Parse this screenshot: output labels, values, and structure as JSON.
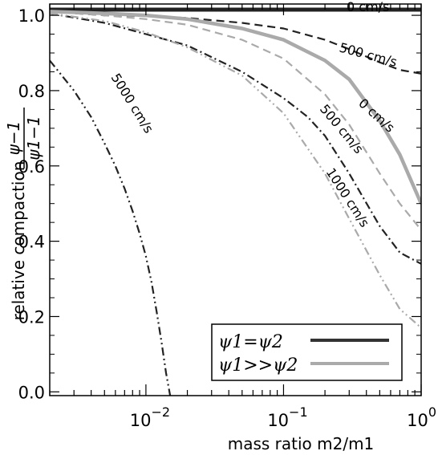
{
  "chart_data": {
    "type": "line",
    "xlabel": "mass ratio m2/m1",
    "ylabel": "relative compaction",
    "ylabel_formula": {
      "numerator": "ψ−1",
      "denominator": "ψ1−1"
    },
    "xscale": "log",
    "xlim": [
      0.002,
      1.0
    ],
    "ylim": [
      -0.01,
      1.03
    ],
    "xticks": [
      {
        "value": 0.01,
        "label": "10",
        "exp": "−2"
      },
      {
        "value": 0.1,
        "label": "10",
        "exp": "−1"
      },
      {
        "value": 1.0,
        "label": "10",
        "exp": "0"
      }
    ],
    "yticks": [
      {
        "value": 0.0,
        "label": "0.0"
      },
      {
        "value": 0.2,
        "label": "0.2"
      },
      {
        "value": 0.4,
        "label": "0.4"
      },
      {
        "value": 0.6,
        "label": "0.6"
      },
      {
        "value": 0.8,
        "label": "0.8"
      },
      {
        "value": 1.0,
        "label": "1.0"
      }
    ],
    "legend": {
      "placement": "bottom-right",
      "entries": [
        {
          "label": "ψ1=ψ2",
          "color": "#333333"
        },
        {
          "label": "ψ1>>ψ2",
          "color": "#aaaaaa"
        }
      ]
    },
    "series": [
      {
        "velocity": "0 cm/s",
        "group": "ψ1=ψ2",
        "color": "#222222",
        "dash": "solid",
        "x": [
          0.002,
          0.01,
          0.1,
          1.0
        ],
        "y": [
          1.015,
          1.015,
          1.015,
          1.015
        ]
      },
      {
        "velocity": "500 cm/s",
        "group": "ψ1=ψ2",
        "color": "#222222",
        "dash": "dash",
        "x": [
          0.002,
          0.005,
          0.01,
          0.02,
          0.05,
          0.1,
          0.2,
          0.3,
          0.5,
          0.7,
          1.0
        ],
        "y": [
          1.01,
          1.0,
          0.998,
          0.993,
          0.98,
          0.965,
          0.935,
          0.91,
          0.875,
          0.855,
          0.845
        ]
      },
      {
        "velocity": "1000 cm/s",
        "group": "ψ1=ψ2",
        "color": "#222222",
        "dash": "dashdot",
        "x": [
          0.002,
          0.005,
          0.01,
          0.02,
          0.05,
          0.1,
          0.15,
          0.2,
          0.3,
          0.5,
          0.7,
          1.0
        ],
        "y": [
          1.005,
          0.98,
          0.95,
          0.92,
          0.85,
          0.78,
          0.73,
          0.68,
          0.58,
          0.44,
          0.37,
          0.34
        ]
      },
      {
        "velocity": "5000 cm/s",
        "group": "ψ1=ψ2",
        "color": "#222222",
        "dash": "dashdotdot",
        "x": [
          0.002,
          0.003,
          0.004,
          0.005,
          0.006,
          0.007,
          0.008,
          0.009,
          0.01,
          0.011,
          0.012,
          0.013,
          0.014,
          0.015
        ],
        "y": [
          0.88,
          0.8,
          0.73,
          0.66,
          0.6,
          0.54,
          0.48,
          0.42,
          0.36,
          0.29,
          0.21,
          0.13,
          0.05,
          -0.01
        ]
      },
      {
        "velocity": "0 cm/s",
        "group": "ψ1>>ψ2",
        "color": "#aaaaaa",
        "dash": "solid",
        "x": [
          0.002,
          0.005,
          0.01,
          0.02,
          0.05,
          0.1,
          0.2,
          0.3,
          0.5,
          0.7,
          1.0
        ],
        "y": [
          1.01,
          1.005,
          1.0,
          0.99,
          0.965,
          0.935,
          0.88,
          0.83,
          0.72,
          0.63,
          0.5
        ]
      },
      {
        "velocity": "500 cm/s",
        "group": "ψ1>>ψ2",
        "color": "#aaaaaa",
        "dash": "dash",
        "x": [
          0.002,
          0.005,
          0.01,
          0.02,
          0.05,
          0.1,
          0.2,
          0.3,
          0.5,
          0.7,
          1.0
        ],
        "y": [
          1.01,
          1.0,
          0.99,
          0.975,
          0.935,
          0.885,
          0.79,
          0.71,
          0.58,
          0.5,
          0.43
        ]
      },
      {
        "velocity": "1000 cm/s",
        "group": "ψ1>>ψ2",
        "color": "#aaaaaa",
        "dash": "dashdotdot",
        "x": [
          0.002,
          0.005,
          0.01,
          0.02,
          0.05,
          0.1,
          0.2,
          0.3,
          0.5,
          0.7,
          1.0
        ],
        "y": [
          1.005,
          0.985,
          0.955,
          0.915,
          0.84,
          0.74,
          0.58,
          0.46,
          0.31,
          0.22,
          0.17
        ]
      }
    ],
    "annotations": [
      {
        "text": "0 cm/s"
      },
      {
        "text": "500 cm/s"
      },
      {
        "text": "5000 cm/s"
      },
      {
        "text": "0 cm/s"
      },
      {
        "text": "500 cm/s"
      },
      {
        "text": "1000 cm/s"
      }
    ]
  }
}
